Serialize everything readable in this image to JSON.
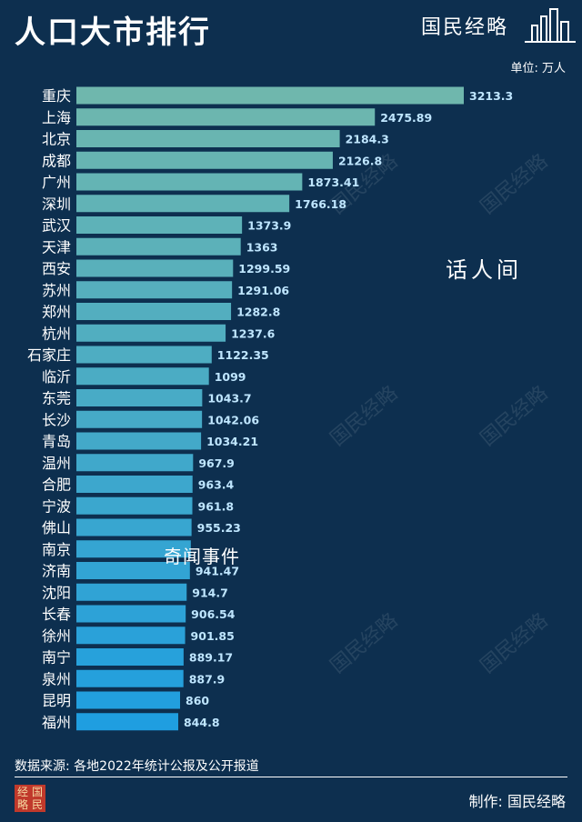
{
  "header": {
    "title": "人口大市排行",
    "brand": "国民经略",
    "unit": "单位: 万人"
  },
  "overlay_text": {
    "center": "话人间",
    "middle": "奇闻事件",
    "watermark": "国民经略"
  },
  "footer": {
    "source": "数据来源: 各地2022年统计公报及公开报道",
    "credit": "制作: 国民经略",
    "seal_chars": [
      "经",
      "国",
      "略",
      "民"
    ]
  },
  "colors": {
    "background": "#0d2f4f",
    "bar_top": "#6fb7ad",
    "bar_bottom": "#1f9ee0",
    "value_label": "#bfe6ff"
  },
  "chart_data": {
    "type": "bar",
    "orientation": "horizontal",
    "title": "人口大市排行",
    "unit": "单位: 万人",
    "xlim": [
      0,
      3213.3
    ],
    "grid": false,
    "legend": "none",
    "categories": [
      "重庆",
      "上海",
      "北京",
      "成都",
      "广州",
      "深圳",
      "武汉",
      "天津",
      "西安",
      "苏州",
      "郑州",
      "杭州",
      "石家庄",
      "临沂",
      "东莞",
      "长沙",
      "青岛",
      "温州",
      "合肥",
      "宁波",
      "佛山",
      "南京",
      "济南",
      "沈阳",
      "长春",
      "徐州",
      "南宁",
      "泉州",
      "昆明",
      "福州"
    ],
    "values": [
      3213.3,
      2475.89,
      2184.3,
      2126.8,
      1873.41,
      1766.18,
      1373.9,
      1363,
      1299.59,
      1291.06,
      1282.8,
      1237.6,
      1122.35,
      1099,
      1043.7,
      1042.06,
      1034.21,
      967.9,
      963.4,
      961.8,
      955.23,
      949.11,
      941.47,
      914.7,
      906.54,
      901.85,
      889.17,
      887.9,
      860,
      844.8
    ],
    "value_labels": [
      "3213.3",
      "2475.89",
      "2184.3",
      "2126.8",
      "1873.41",
      "1766.18",
      "1373.9",
      "1363",
      "1299.59",
      "1291.06",
      "1282.8",
      "1237.6",
      "1122.35",
      "1099",
      "1043.7",
      "1042.06",
      "1034.21",
      "967.9",
      "963.4",
      "961.8",
      "955.23",
      "",
      "941.47",
      "914.7",
      "906.54",
      "901.85",
      "889.17",
      "887.9",
      "860",
      "844.8"
    ]
  }
}
